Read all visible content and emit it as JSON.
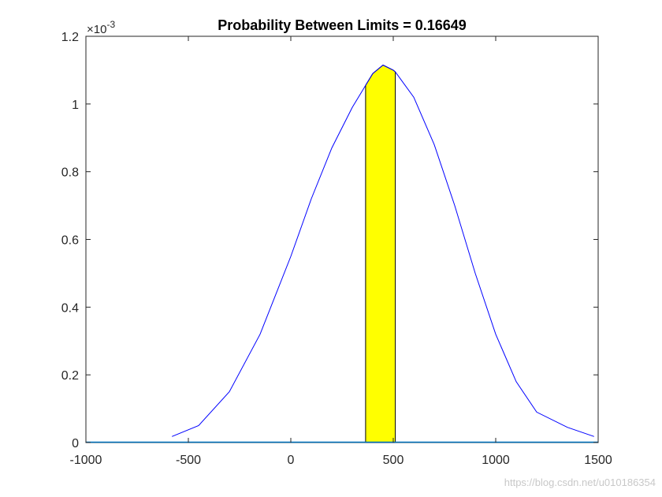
{
  "chart_data": {
    "type": "area",
    "title": "Probability Between Limits = 0.16649",
    "xlabel": "",
    "ylabel": "",
    "xlim": [
      -1000,
      1500
    ],
    "ylim": [
      0,
      1.2
    ],
    "y_exponent_label": "×10",
    "y_exponent_power": "-3",
    "x_ticks": [
      -1000,
      -500,
      0,
      500,
      1000,
      1500
    ],
    "x_tick_labels": [
      "-1000",
      "-500",
      "0",
      "500",
      "1000",
      "1500"
    ],
    "y_ticks": [
      0,
      0.2,
      0.4,
      0.6,
      0.8,
      1,
      1.2
    ],
    "y_tick_labels": [
      "0",
      "0.2",
      "0.4",
      "0.6",
      "0.8",
      "1",
      "1.2"
    ],
    "series": [
      {
        "color": "#0000ff",
        "x": [
          -580,
          -450,
          -300,
          -150,
          0,
          100,
          200,
          300,
          360,
          400,
          450,
          500,
          510,
          600,
          700,
          800,
          900,
          1000,
          1100,
          1200,
          1350,
          1480
        ],
        "y": [
          0.018,
          0.05,
          0.15,
          0.32,
          0.55,
          0.72,
          0.87,
          0.99,
          1.05,
          1.09,
          1.115,
          1.1,
          1.095,
          1.02,
          0.88,
          0.7,
          0.5,
          0.32,
          0.18,
          0.09,
          0.045,
          0.018
        ]
      }
    ],
    "shaded_region": {
      "x_start": 365,
      "x_end": 510,
      "fill": "#ffff00",
      "probability": 0.16649
    },
    "baseline_color": "#0072bd",
    "grid": false
  },
  "watermark": "https://blog.csdn.net/u010186354"
}
